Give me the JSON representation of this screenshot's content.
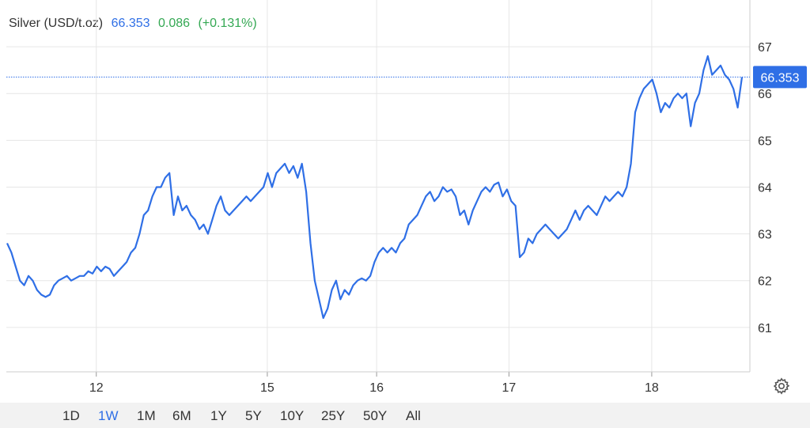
{
  "header": {
    "instrument": "Silver (USD/t.oz)",
    "price": "66.353",
    "change": "0.086",
    "change_pct": "(+0.131%)"
  },
  "colors": {
    "line": "#2f6fe6",
    "positive": "#34a853",
    "price_text": "#2f6fe6",
    "badge_bg": "#2f6fe6",
    "grid": "#e6e6e6",
    "range_bar_bg": "#f2f2f2"
  },
  "ranges": [
    "1D",
    "1W",
    "1M",
    "6M",
    "1Y",
    "5Y",
    "10Y",
    "25Y",
    "50Y",
    "All"
  ],
  "active_range": "1W",
  "settings_icon": "gear-icon",
  "chart_data": {
    "type": "line",
    "title": "Silver (USD/t.oz)",
    "xlabel": "",
    "ylabel": "",
    "y_ticks": [
      "61",
      "62",
      "63",
      "64",
      "65",
      "66",
      "67"
    ],
    "x_tick_labels": [
      "12",
      "15",
      "16",
      "17",
      "18"
    ],
    "x_tick_positions": [
      0.121,
      0.351,
      0.498,
      0.676,
      0.868
    ],
    "ylim": [
      60.05,
      68.0
    ],
    "last_price": 66.353,
    "grid": true,
    "series": [
      {
        "values": [
          62.8,
          62.6,
          62.3,
          62.0,
          61.9,
          62.1,
          62.0,
          61.8,
          61.7,
          61.65,
          61.7,
          61.9,
          62.0,
          62.05,
          62.1,
          62.0,
          62.05,
          62.1,
          62.1,
          62.2,
          62.15,
          62.3,
          62.2,
          62.3,
          62.25,
          62.1,
          62.2,
          62.3,
          62.4,
          62.6,
          62.7,
          63.0,
          63.4,
          63.5,
          63.8,
          64.0,
          64.0,
          64.2,
          64.3,
          63.4,
          63.8,
          63.5,
          63.6,
          63.4,
          63.3,
          63.1,
          63.2,
          63.0,
          63.3,
          63.6,
          63.8,
          63.5,
          63.4,
          63.5,
          63.6,
          63.7,
          63.8,
          63.7,
          63.8,
          63.9,
          64.0,
          64.3,
          64.0,
          64.3,
          64.4,
          64.5,
          64.3,
          64.45,
          64.2,
          64.5,
          63.9,
          62.8,
          62.0,
          61.6,
          61.2,
          61.4,
          61.8,
          62.0,
          61.6,
          61.8,
          61.7,
          61.9,
          62.0,
          62.05,
          62.0,
          62.1,
          62.4,
          62.6,
          62.7,
          62.6,
          62.7,
          62.6,
          62.8,
          62.9,
          63.2,
          63.3,
          63.4,
          63.6,
          63.8,
          63.9,
          63.7,
          63.8,
          64.0,
          63.9,
          63.95,
          63.8,
          63.4,
          63.5,
          63.2,
          63.5,
          63.7,
          63.9,
          64.0,
          63.9,
          64.05,
          64.1,
          63.8,
          63.95,
          63.7,
          63.6,
          62.5,
          62.6,
          62.9,
          62.8,
          63.0,
          63.1,
          63.2,
          63.1,
          63.0,
          62.9,
          63.0,
          63.1,
          63.3,
          63.5,
          63.3,
          63.5,
          63.6,
          63.5,
          63.4,
          63.6,
          63.8,
          63.7,
          63.8,
          63.9,
          63.8,
          64.0,
          64.5,
          65.6,
          65.9,
          66.1,
          66.2,
          66.3,
          66.0,
          65.6,
          65.8,
          65.7,
          65.9,
          66.0,
          65.9,
          66.0,
          65.3,
          65.8,
          66.0,
          66.5,
          66.8,
          66.4,
          66.5,
          66.6,
          66.4,
          66.3,
          66.1,
          65.7,
          66.35
        ]
      }
    ]
  }
}
